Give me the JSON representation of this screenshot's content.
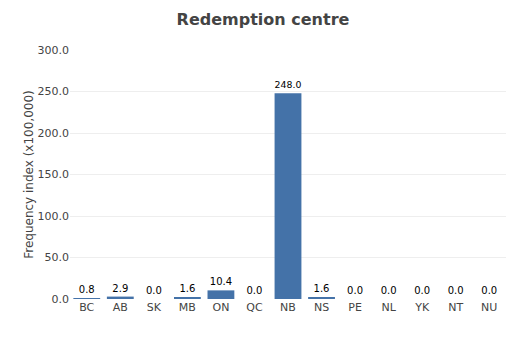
{
  "chart_data": {
    "type": "bar",
    "title": "Redemption centre",
    "categories": [
      "BC",
      "AB",
      "SK",
      "MB",
      "ON",
      "QC",
      "NB",
      "NS",
      "PE",
      "NL",
      "YK",
      "NT",
      "NU"
    ],
    "values": [
      0.8,
      2.9,
      0.0,
      1.6,
      10.4,
      0.0,
      248.0,
      1.6,
      0.0,
      0.0,
      0.0,
      0.0,
      0.0
    ],
    "value_labels": [
      "0.8",
      "2.9",
      "0.0",
      "1.6",
      "10.4",
      "0.0",
      "248.0",
      "1.6",
      "0.0",
      "0.0",
      "0.0",
      "0.0",
      "0.0"
    ],
    "data_labels": true,
    "color": "#4472a8",
    "ylabel": "Frequency index (x100,000)",
    "ylim": [
      0,
      300.0
    ],
    "yticks": [
      {
        "value": 0,
        "label": "0.0"
      },
      {
        "value": 50,
        "label": "50.0"
      },
      {
        "value": 100,
        "label": "100.0"
      },
      {
        "value": 150,
        "label": "150.0"
      },
      {
        "value": 200,
        "label": "200.0"
      },
      {
        "value": 250,
        "label": "250.0"
      },
      {
        "value": 300,
        "label": "300.0"
      }
    ],
    "grid": true
  }
}
